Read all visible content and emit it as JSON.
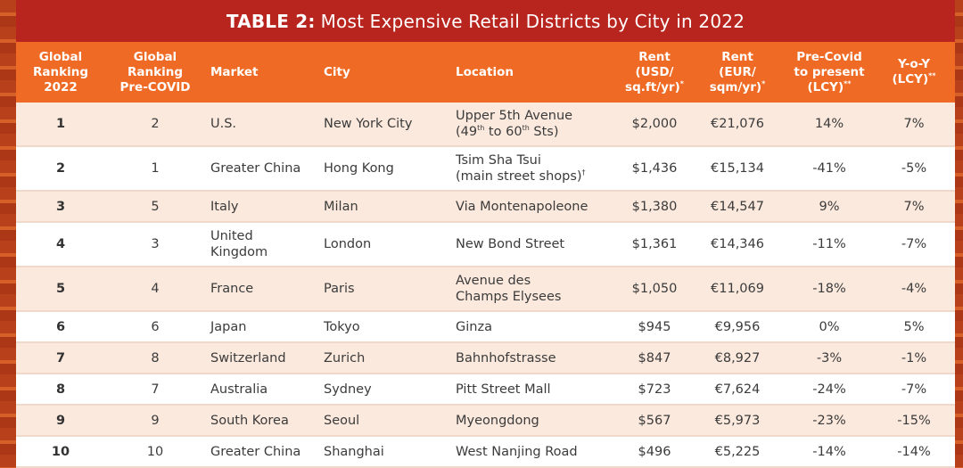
{
  "title": {
    "prefix": "TABLE 2:",
    "text": "Most Expensive Retail Districts by City in 2022"
  },
  "columns": [
    {
      "lines": [
        "Global",
        "Ranking",
        "2022"
      ],
      "sup": ""
    },
    {
      "lines": [
        "Global",
        "Ranking",
        "Pre-COVID"
      ],
      "sup": ""
    },
    {
      "lines": [
        "Market"
      ],
      "sup": ""
    },
    {
      "lines": [
        "City"
      ],
      "sup": ""
    },
    {
      "lines": [
        "Location"
      ],
      "sup": ""
    },
    {
      "lines": [
        "Rent",
        "(USD/",
        "sq.ft/yr)"
      ],
      "sup": "*"
    },
    {
      "lines": [
        "Rent",
        "(EUR/",
        "sqm/yr)"
      ],
      "sup": "*"
    },
    {
      "lines": [
        "Pre-Covid",
        "to present",
        "(LCY)"
      ],
      "sup": "**"
    },
    {
      "lines": [
        "Y-o-Y",
        "(LCY)"
      ],
      "sup": "**"
    }
  ],
  "rows": [
    {
      "rank": "1",
      "pre": "2",
      "market": [
        "U.S."
      ],
      "city": "New York City",
      "location": [
        {
          "t": "Upper 5th Avenue"
        },
        {
          "t": "(49",
          "s": "th",
          "t2": " to 60",
          "s2": "th",
          "t3": " Sts)"
        }
      ],
      "usd": "$2,000",
      "eur": "€21,076",
      "precovid": "14%",
      "yoy": "7%"
    },
    {
      "rank": "2",
      "pre": "1",
      "market": [
        "Greater China"
      ],
      "city": "Hong Kong",
      "location": [
        {
          "t": "Tsim Sha Tsui"
        },
        {
          "t": "(main street shops)",
          "s": "†"
        }
      ],
      "usd": "$1,436",
      "eur": "€15,134",
      "precovid": "-41%",
      "yoy": "-5%"
    },
    {
      "rank": "3",
      "pre": "5",
      "market": [
        "Italy"
      ],
      "city": "Milan",
      "location": [
        {
          "t": "Via Montenapoleone"
        }
      ],
      "usd": "$1,380",
      "eur": "€14,547",
      "precovid": "9%",
      "yoy": "7%"
    },
    {
      "rank": "4",
      "pre": "3",
      "market": [
        "United",
        "Kingdom"
      ],
      "city": "London",
      "location": [
        {
          "t": "New Bond Street"
        }
      ],
      "usd": "$1,361",
      "eur": "€14,346",
      "precovid": "-11%",
      "yoy": "-7%"
    },
    {
      "rank": "5",
      "pre": "4",
      "market": [
        "France"
      ],
      "city": "Paris",
      "location": [
        {
          "t": "Avenue des"
        },
        {
          "t": "Champs Elysees"
        }
      ],
      "usd": "$1,050",
      "eur": "€11,069",
      "precovid": "-18%",
      "yoy": "-4%"
    },
    {
      "rank": "6",
      "pre": "6",
      "market": [
        "Japan"
      ],
      "city": "Tokyo",
      "location": [
        {
          "t": "Ginza"
        }
      ],
      "usd": "$945",
      "eur": "€9,956",
      "precovid": "0%",
      "yoy": "5%"
    },
    {
      "rank": "7",
      "pre": "8",
      "market": [
        "Switzerland"
      ],
      "city": "Zurich",
      "location": [
        {
          "t": "Bahnhofstrasse"
        }
      ],
      "usd": "$847",
      "eur": "€8,927",
      "precovid": "-3%",
      "yoy": "-1%"
    },
    {
      "rank": "8",
      "pre": "7",
      "market": [
        "Australia"
      ],
      "city": "Sydney",
      "location": [
        {
          "t": "Pitt Street Mall"
        }
      ],
      "usd": "$723",
      "eur": "€7,624",
      "precovid": "-24%",
      "yoy": "-7%"
    },
    {
      "rank": "9",
      "pre": "9",
      "market": [
        "South Korea"
      ],
      "city": "Seoul",
      "location": [
        {
          "t": "Myeongdong"
        }
      ],
      "usd": "$567",
      "eur": "€5,973",
      "precovid": "-23%",
      "yoy": "-15%"
    },
    {
      "rank": "10",
      "pre": "10",
      "market": [
        "Greater China"
      ],
      "city": "Shanghai",
      "location": [
        {
          "t": "West Nanjing Road"
        }
      ],
      "usd": "$496",
      "eur": "€5,225",
      "precovid": "-14%",
      "yoy": "-14%"
    }
  ],
  "colors": {
    "title_bg": "#b8241e",
    "header_bg": "#ef6b25",
    "row_alt": "#fbe9dd",
    "page_bg": "#c5431a"
  }
}
